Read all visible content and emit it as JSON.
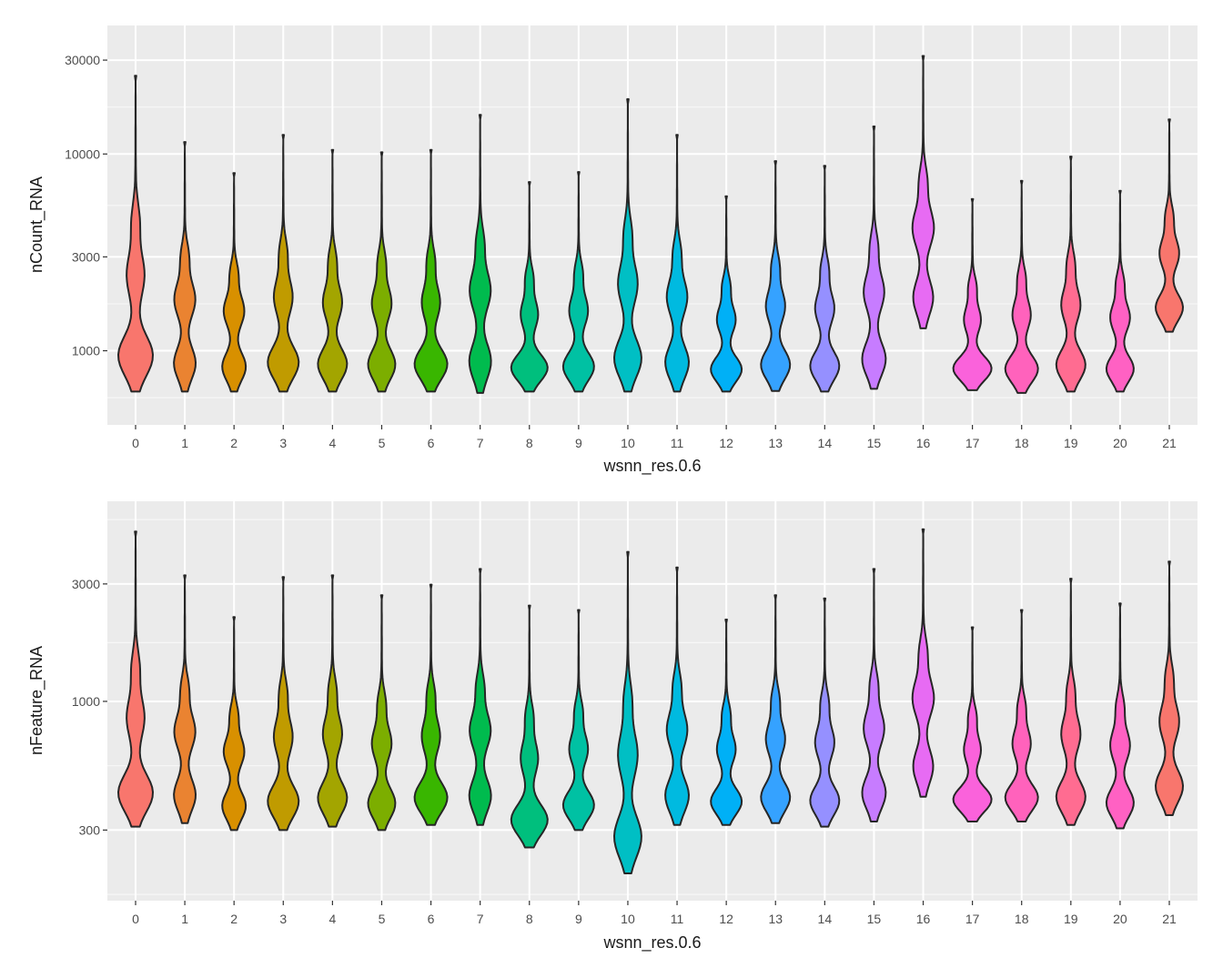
{
  "chart_data": [
    {
      "type": "violin",
      "panel": "top",
      "ylabel": "nCount_RNA",
      "xlabel": "wsnn_res.0.6",
      "yscale": "log10",
      "ylim": [
        420,
        45000
      ],
      "yticks": [
        1000,
        3000,
        10000,
        30000
      ],
      "ytick_labels": [
        "1000",
        "3000",
        "10000",
        "30000"
      ],
      "categories": [
        "0",
        "1",
        "2",
        "3",
        "4",
        "5",
        "6",
        "7",
        "8",
        "9",
        "10",
        "11",
        "12",
        "13",
        "14",
        "15",
        "16",
        "17",
        "18",
        "19",
        "20",
        "21"
      ],
      "min_values": [
        620,
        620,
        620,
        620,
        620,
        620,
        620,
        610,
        620,
        620,
        620,
        620,
        620,
        625,
        620,
        640,
        1300,
        630,
        610,
        620,
        620,
        1250
      ],
      "max_values": [
        25000,
        11500,
        8000,
        12500,
        10500,
        10200,
        10500,
        15800,
        7200,
        8100,
        19000,
        12500,
        6100,
        9200,
        8700,
        13800,
        31500,
        5900,
        7300,
        9700,
        6500,
        15000
      ]
    },
    {
      "type": "violin",
      "panel": "bottom",
      "ylabel": "nFeature_RNA",
      "xlabel": "wsnn_res.0.6",
      "yscale": "log10",
      "ylim": [
        155,
        6500
      ],
      "yticks": [
        300,
        1000,
        3000
      ],
      "ytick_labels": [
        "300",
        "1000",
        "3000"
      ],
      "categories": [
        "0",
        "1",
        "2",
        "3",
        "4",
        "5",
        "6",
        "7",
        "8",
        "9",
        "10",
        "11",
        "12",
        "13",
        "14",
        "15",
        "16",
        "17",
        "18",
        "19",
        "20",
        "21"
      ],
      "min_values": [
        310,
        320,
        300,
        300,
        310,
        300,
        315,
        315,
        255,
        300,
        200,
        315,
        315,
        320,
        310,
        325,
        410,
        325,
        325,
        315,
        305,
        345
      ],
      "max_values": [
        4900,
        3250,
        2200,
        3200,
        3250,
        2700,
        2980,
        3450,
        2450,
        2350,
        4050,
        3500,
        2150,
        2700,
        2620,
        3450,
        5000,
        2000,
        2350,
        3150,
        2500,
        3700
      ]
    }
  ],
  "colors": [
    "#F8766D",
    "#EA8331",
    "#D89000",
    "#C09B00",
    "#A3A500",
    "#7CAE00",
    "#39B600",
    "#00BB4E",
    "#00BF7D",
    "#00C1A3",
    "#00BFC4",
    "#00BAE0",
    "#00B0F6",
    "#35A2FF",
    "#9590FF",
    "#C77CFF",
    "#E76BF3",
    "#FA62DB",
    "#FF62BC",
    "#FF6C91",
    "#FF61C3",
    "#F8766D"
  ]
}
